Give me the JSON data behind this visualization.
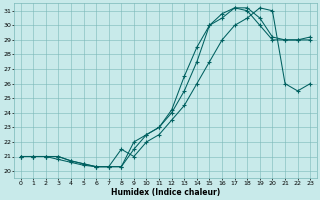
{
  "xlabel": "Humidex (Indice chaleur)",
  "bg_color": "#c8eaea",
  "grid_color": "#7ab8b8",
  "line_color": "#006060",
  "xlim": [
    -0.5,
    23.5
  ],
  "ylim": [
    19.5,
    31.5
  ],
  "xticks": [
    0,
    1,
    2,
    3,
    4,
    5,
    6,
    7,
    8,
    9,
    10,
    11,
    12,
    13,
    14,
    15,
    16,
    17,
    18,
    19,
    20,
    21,
    22,
    23
  ],
  "yticks": [
    20,
    21,
    22,
    23,
    24,
    25,
    26,
    27,
    28,
    29,
    30,
    31
  ],
  "curve1_x": [
    0,
    1,
    2,
    3,
    4,
    5,
    6,
    7,
    8,
    9,
    10,
    11,
    12,
    13,
    14,
    15,
    16,
    17,
    18,
    19,
    20,
    21,
    22,
    23
  ],
  "curve1_y": [
    21,
    21,
    21,
    21,
    20.7,
    20.5,
    20.3,
    20.3,
    20.3,
    21.5,
    22.5,
    23.0,
    24.0,
    25.5,
    27.5,
    30.0,
    30.5,
    31.2,
    31.2,
    30.5,
    29.2,
    29.0,
    29.0,
    29.0
  ],
  "curve2_x": [
    0,
    1,
    2,
    3,
    4,
    5,
    6,
    7,
    8,
    9,
    10,
    11,
    12,
    13,
    14,
    15,
    16,
    17,
    18,
    19,
    20,
    21,
    22,
    23
  ],
  "curve2_y": [
    21,
    21,
    21,
    20.8,
    20.6,
    20.4,
    20.3,
    20.3,
    20.3,
    22.0,
    22.5,
    23.0,
    24.2,
    26.5,
    28.5,
    30.0,
    30.8,
    31.2,
    31.0,
    30.0,
    29.0,
    29.0,
    29.0,
    29.2
  ],
  "curve3_x": [
    0,
    1,
    2,
    3,
    4,
    5,
    6,
    7,
    8,
    9,
    10,
    11,
    12,
    13,
    14,
    15,
    16,
    17,
    18,
    19,
    20,
    21,
    22,
    23
  ],
  "curve3_y": [
    21,
    21,
    21,
    21,
    20.7,
    20.5,
    20.3,
    20.3,
    21.5,
    21.0,
    22.0,
    22.5,
    23.5,
    24.5,
    26.0,
    27.5,
    29.0,
    30.0,
    30.5,
    31.2,
    31.0,
    26.0,
    25.5,
    26.0
  ]
}
